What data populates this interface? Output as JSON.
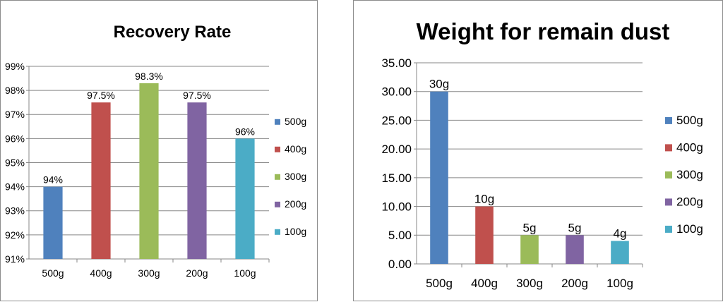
{
  "chart_data": [
    {
      "type": "bar",
      "title": "Recovery Rate",
      "xlabel": "",
      "ylabel": "",
      "categories": [
        "500g",
        "400g",
        "300g",
        "200g",
        "100g"
      ],
      "values": [
        94,
        97.5,
        98.3,
        97.5,
        96
      ],
      "data_labels": [
        "94%",
        "97.5%",
        "98.3%",
        "97.5%",
        "96%"
      ],
      "ylim": [
        91,
        99
      ],
      "yticks": [
        91,
        92,
        93,
        94,
        95,
        96,
        97,
        98,
        99
      ],
      "ytick_labels": [
        "91%",
        "92%",
        "93%",
        "94%",
        "95%",
        "96%",
        "97%",
        "98%",
        "99%"
      ],
      "colors": [
        "#4f81bd",
        "#c0504d",
        "#9bbb59",
        "#8064a2",
        "#4bacc6"
      ],
      "legend": [
        "500g",
        "400g",
        "300g",
        "200g",
        "100g"
      ],
      "legend_position": "right",
      "grid": true
    },
    {
      "type": "bar",
      "title": "Weight for remain dust",
      "xlabel": "",
      "ylabel": "",
      "categories": [
        "500g",
        "400g",
        "300g",
        "200g",
        "100g"
      ],
      "values": [
        30,
        10,
        5,
        5,
        4
      ],
      "data_labels": [
        "30g",
        "10g",
        "5g",
        "5g",
        "4g"
      ],
      "ylim": [
        0,
        35
      ],
      "yticks": [
        0,
        5,
        10,
        15,
        20,
        25,
        30,
        35
      ],
      "ytick_labels": [
        "0.00",
        "5.00",
        "10.00",
        "15.00",
        "20.00",
        "25.00",
        "30.00",
        "35.00"
      ],
      "colors": [
        "#4f81bd",
        "#c0504d",
        "#9bbb59",
        "#8064a2",
        "#4bacc6"
      ],
      "legend": [
        "500g",
        "400g",
        "300g",
        "200g",
        "100g"
      ],
      "legend_position": "right",
      "grid": true
    }
  ]
}
